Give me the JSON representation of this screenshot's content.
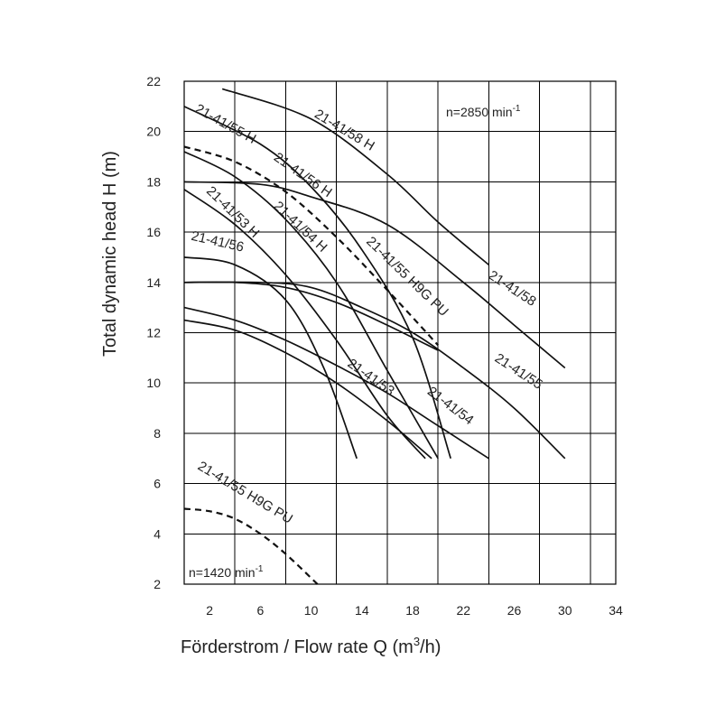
{
  "chart_data": {
    "type": "line",
    "title": "",
    "xlabel_main": "Förderstrom / Flow rate Q (m",
    "xlabel_sup": "3",
    "xlabel_end": "/h)",
    "ylabel": "Total dynamic head H (m)",
    "xlim": [
      0,
      34
    ],
    "ylim": [
      2,
      22
    ],
    "x_ticks": [
      "2",
      "6",
      "10",
      "14",
      "18",
      "22",
      "26",
      "30",
      "34"
    ],
    "y_ticks": [
      "2",
      "4",
      "6",
      "8",
      "10",
      "12",
      "14",
      "16",
      "18",
      "20",
      "22"
    ],
    "grid": true,
    "speed_high": {
      "text": "n=2850 min",
      "sup": "-1"
    },
    "speed_low": {
      "text": "n=1420 min",
      "sup": "-1"
    },
    "series": [
      {
        "name": "21-41/58 H",
        "style": "solid",
        "x": [
          3,
          10,
          16,
          20,
          24
        ],
        "y": [
          21.7,
          20.5,
          18.3,
          16.4,
          14.7
        ]
      },
      {
        "name": "21-41/55 H",
        "style": "solid",
        "x": [
          0,
          6,
          10,
          14,
          18,
          21
        ],
        "y": [
          21.0,
          19.5,
          17.8,
          15.3,
          11.8,
          7.0
        ]
      },
      {
        "name": "21-41/56 H",
        "style": "solid",
        "x": [
          0,
          4,
          8,
          12,
          16,
          20
        ],
        "y": [
          19.2,
          18.2,
          16.5,
          14.0,
          10.5,
          7.0
        ]
      },
      {
        "name": "21-41/55 H9G PU",
        "style": "dashed",
        "x": [
          0,
          4,
          8,
          12,
          16,
          20
        ],
        "y": [
          19.4,
          18.8,
          17.6,
          15.8,
          13.7,
          11.5
        ]
      },
      {
        "name": "21-41/58",
        "style": "solid",
        "x": [
          0,
          6,
          10,
          16,
          22,
          26,
          30
        ],
        "y": [
          18.0,
          17.9,
          17.4,
          16.3,
          14.0,
          12.3,
          10.6
        ]
      },
      {
        "name": "21-41/54 H",
        "style": "solid",
        "x": [
          0,
          4,
          8,
          12,
          16,
          19
        ],
        "y": [
          17.7,
          16.3,
          14.3,
          11.7,
          8.7,
          7.0
        ]
      },
      {
        "name": "21-41/53 H",
        "style": "solid",
        "x": [
          0,
          4,
          8,
          11,
          13.6
        ],
        "y": [
          15.0,
          14.7,
          13.3,
          10.6,
          7.0
        ]
      },
      {
        "name": "21-41/56",
        "style": "solid",
        "x": [
          0,
          4,
          8,
          12,
          16,
          20
        ],
        "y": [
          14.0,
          14.0,
          13.8,
          13.2,
          12.3,
          11.3
        ]
      },
      {
        "name": "21-41/55",
        "style": "solid",
        "x": [
          0,
          6,
          10,
          14,
          18,
          22,
          26,
          30
        ],
        "y": [
          14.0,
          14.0,
          13.8,
          13.0,
          12.0,
          10.6,
          9.0,
          7.0
        ]
      },
      {
        "name": "21-41/54",
        "style": "solid",
        "x": [
          0,
          4,
          8,
          12,
          16,
          20,
          24
        ],
        "y": [
          13.0,
          12.5,
          11.7,
          10.7,
          9.6,
          8.3,
          7.0
        ]
      },
      {
        "name": "21-41/53",
        "style": "solid",
        "x": [
          0,
          4,
          8,
          12,
          16,
          19.5
        ],
        "y": [
          12.5,
          12.1,
          11.2,
          10.0,
          8.5,
          7.0
        ]
      },
      {
        "name": "21-41/55 H9G PU (n=1420)",
        "style": "dashed",
        "x": [
          0,
          2,
          4,
          6,
          8,
          10.5
        ],
        "y": [
          5.0,
          4.9,
          4.6,
          4.0,
          3.2,
          2.0
        ]
      }
    ],
    "curve_labels": [
      {
        "text": "21-41/58 H",
        "x": 10.2,
        "y": 20.6,
        "angle": 31
      },
      {
        "text": "21-41/55 H",
        "x": 0.8,
        "y": 20.8,
        "angle": 29
      },
      {
        "text": "21-41/56 H",
        "x": 7.0,
        "y": 18.9,
        "angle": 35
      },
      {
        "text": "21-41/53 H",
        "x": 1.7,
        "y": 17.6,
        "angle": 44
      },
      {
        "text": "21-41/54 H",
        "x": 7.0,
        "y": 17.0,
        "angle": 43
      },
      {
        "text": "21-41/56",
        "x": 0.5,
        "y": 15.7,
        "angle": 13
      },
      {
        "text": "21-41/55 H9G PU",
        "x": 14.3,
        "y": 15.6,
        "angle": 44
      },
      {
        "text": "21-41/58",
        "x": 23.9,
        "y": 14.2,
        "angle": 33
      },
      {
        "text": "21-41/55",
        "x": 24.4,
        "y": 10.9,
        "angle": 33
      },
      {
        "text": "21-41/53",
        "x": 12.8,
        "y": 10.7,
        "angle": 35
      },
      {
        "text": "21-41/54",
        "x": 19.1,
        "y": 9.6,
        "angle": 37
      },
      {
        "text": "21-41/55 H9G PU",
        "x": 1.0,
        "y": 6.6,
        "angle": 31
      }
    ]
  }
}
